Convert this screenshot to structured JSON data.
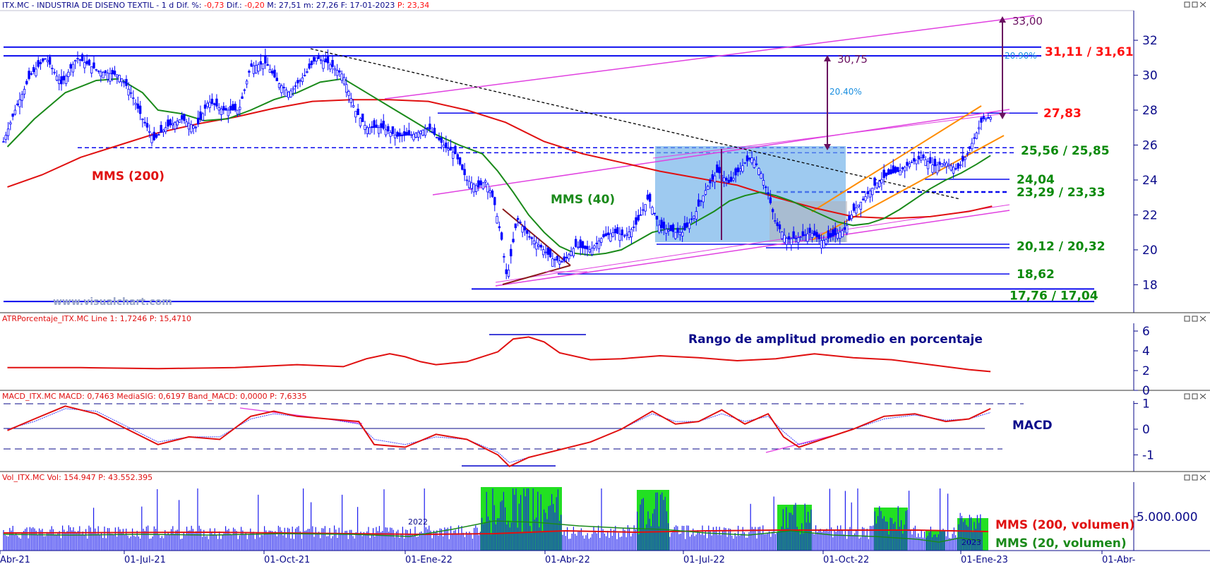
{
  "chart_data": [
    {
      "type": "candlestick",
      "header": {
        "title": "ITX.MC - INDUSTRIA DE DISENO TEXTIL -  1 d  Dif. %: ",
        "dif_pct": "-0,73",
        "dif_label": " Dif.: ",
        "dif": "-0,20",
        "rest": " M: 27,51  m: 27,26  F: 17-01-2023  ",
        "p_label": "P: 23,34"
      },
      "watermark": "www.visualchart.com",
      "y_ticks": [
        "32",
        "30",
        "28",
        "26",
        "24",
        "22",
        "20",
        "18"
      ],
      "ylim": [
        16.4,
        33.7
      ],
      "x_labels": [
        "Abr-21",
        "01-Jul-21",
        "01-Oct-21",
        "01-Ene-22",
        "01-Abr-22",
        "01-Jul-22",
        "01-Oct-22",
        "01-Ene-23",
        "01-Abr-"
      ],
      "x_label_top": [
        "2022",
        "2023"
      ],
      "price_path": [
        [
          0,
          26.2
        ],
        [
          15,
          28
        ],
        [
          35,
          30
        ],
        [
          55,
          31
        ],
        [
          75,
          29.5
        ],
        [
          95,
          31
        ],
        [
          110,
          30.6
        ],
        [
          125,
          30.2
        ],
        [
          150,
          30
        ],
        [
          165,
          29
        ],
        [
          180,
          27.5
        ],
        [
          195,
          26.3
        ],
        [
          210,
          27
        ],
        [
          230,
          27.5
        ],
        [
          250,
          27
        ],
        [
          265,
          28.5
        ],
        [
          285,
          28
        ],
        [
          305,
          28
        ],
        [
          320,
          30.5
        ],
        [
          340,
          30.7
        ],
        [
          355,
          29.6
        ],
        [
          370,
          29
        ],
        [
          390,
          30
        ],
        [
          405,
          31
        ],
        [
          420,
          30.7
        ],
        [
          440,
          30
        ],
        [
          455,
          28
        ],
        [
          470,
          27
        ],
        [
          490,
          27
        ],
        [
          510,
          26.5
        ],
        [
          530,
          26.6
        ],
        [
          550,
          27
        ],
        [
          570,
          26
        ],
        [
          585,
          25.5
        ],
        [
          600,
          24
        ],
        [
          615,
          23.6
        ],
        [
          625,
          24
        ],
        [
          635,
          22.8
        ],
        [
          645,
          20.6
        ],
        [
          652,
          18.3
        ],
        [
          665,
          21.8
        ],
        [
          680,
          20.8
        ],
        [
          695,
          20.2
        ],
        [
          710,
          19.5
        ],
        [
          725,
          19.3
        ],
        [
          740,
          20.2
        ],
        [
          760,
          20
        ],
        [
          775,
          20.7
        ],
        [
          790,
          21
        ],
        [
          805,
          20.8
        ],
        [
          820,
          21.5
        ],
        [
          835,
          23
        ],
        [
          850,
          21.3
        ],
        [
          870,
          21
        ],
        [
          880,
          21
        ],
        [
          895,
          22
        ],
        [
          910,
          23.5
        ],
        [
          925,
          24.5
        ],
        [
          940,
          23.8
        ],
        [
          960,
          25
        ],
        [
          970,
          25.3
        ],
        [
          980,
          24.5
        ],
        [
          990,
          23.2
        ],
        [
          1000,
          21.5
        ],
        [
          1015,
          20.6
        ],
        [
          1030,
          20.7
        ],
        [
          1045,
          21
        ],
        [
          1060,
          20.5
        ],
        [
          1075,
          20.8
        ],
        [
          1090,
          21.2
        ],
        [
          1100,
          22.2
        ],
        [
          1115,
          23
        ],
        [
          1130,
          23.8
        ],
        [
          1145,
          24.3
        ],
        [
          1160,
          24.5
        ],
        [
          1175,
          25
        ],
        [
          1190,
          25.3
        ],
        [
          1205,
          24.8
        ],
        [
          1220,
          25
        ],
        [
          1235,
          24.6
        ],
        [
          1248,
          25.5
        ],
        [
          1258,
          26.5
        ],
        [
          1268,
          27.5
        ],
        [
          1280,
          27.6
        ]
      ],
      "mms200_path": [
        [
          5,
          23.6
        ],
        [
          50,
          24.3
        ],
        [
          100,
          25.3
        ],
        [
          150,
          26
        ],
        [
          200,
          26.7
        ],
        [
          250,
          27.2
        ],
        [
          300,
          27.6
        ],
        [
          350,
          28.1
        ],
        [
          400,
          28.5
        ],
        [
          450,
          28.6
        ],
        [
          500,
          28.6
        ],
        [
          550,
          28.5
        ],
        [
          600,
          28
        ],
        [
          650,
          27.3
        ],
        [
          700,
          26.2
        ],
        [
          750,
          25.5
        ],
        [
          800,
          25
        ],
        [
          850,
          24.5
        ],
        [
          900,
          24.1
        ],
        [
          950,
          23.7
        ],
        [
          1000,
          23
        ],
        [
          1050,
          22.4
        ],
        [
          1100,
          21.9
        ],
        [
          1150,
          21.8
        ],
        [
          1200,
          21.9
        ],
        [
          1250,
          22.2
        ],
        [
          1280,
          22.5
        ]
      ],
      "mms40_path": [
        [
          5,
          25.9
        ],
        [
          40,
          27.5
        ],
        [
          80,
          29
        ],
        [
          120,
          29.7
        ],
        [
          150,
          29.8
        ],
        [
          180,
          29
        ],
        [
          200,
          28
        ],
        [
          230,
          27.8
        ],
        [
          260,
          27.4
        ],
        [
          290,
          27.5
        ],
        [
          320,
          28
        ],
        [
          350,
          28.6
        ],
        [
          380,
          29
        ],
        [
          410,
          29.6
        ],
        [
          440,
          29.8
        ],
        [
          470,
          29
        ],
        [
          500,
          28.2
        ],
        [
          530,
          27.4
        ],
        [
          560,
          26.6
        ],
        [
          590,
          26
        ],
        [
          620,
          25.5
        ],
        [
          640,
          24.5
        ],
        [
          660,
          23.3
        ],
        [
          680,
          22
        ],
        [
          700,
          21
        ],
        [
          720,
          20.2
        ],
        [
          740,
          19.8
        ],
        [
          760,
          19.7
        ],
        [
          780,
          19.8
        ],
        [
          800,
          20
        ],
        [
          820,
          20.5
        ],
        [
          840,
          21
        ],
        [
          860,
          21.2
        ],
        [
          880,
          21.2
        ],
        [
          900,
          21.7
        ],
        [
          920,
          22.2
        ],
        [
          940,
          22.8
        ],
        [
          960,
          23.1
        ],
        [
          980,
          23.3
        ],
        [
          1000,
          23.1
        ],
        [
          1020,
          22.8
        ],
        [
          1040,
          22.4
        ],
        [
          1060,
          22
        ],
        [
          1080,
          21.6
        ],
        [
          1100,
          21.4
        ],
        [
          1120,
          21.5
        ],
        [
          1140,
          21.8
        ],
        [
          1160,
          22.3
        ],
        [
          1180,
          22.9
        ],
        [
          1200,
          23.5
        ],
        [
          1220,
          24
        ],
        [
          1240,
          24.4
        ],
        [
          1260,
          24.9
        ],
        [
          1278,
          25.4
        ]
      ],
      "mms40_label": "MMS (40)",
      "mms200_label": "MMS (200)",
      "levels": [
        {
          "label": "31,11 / 31,61",
          "values": [
            31.11,
            31.61
          ],
          "color": "#ff1010"
        },
        {
          "label": "27,83",
          "values": [
            27.83
          ],
          "color": "#ff1010"
        },
        {
          "label": "25,56 / 25,85",
          "values": [
            25.56,
            25.85
          ],
          "color": "#0a8a0a"
        },
        {
          "label": "24,04",
          "values": [
            24.04
          ],
          "color": "#0a8a0a"
        },
        {
          "label": "23,29 / 23,33",
          "values": [
            23.29,
            23.33
          ],
          "color": "#0a8a0a"
        },
        {
          "label": "20,12 / 20,32",
          "values": [
            20.12,
            20.32
          ],
          "color": "#0a8a0a"
        },
        {
          "label": "18,62",
          "values": [
            18.62
          ],
          "color": "#0a8a0a"
        },
        {
          "label": "17,76 / 17,04",
          "values": [
            17.76,
            17.04
          ],
          "color": "#0a8a0a"
        }
      ],
      "targets": [
        {
          "label": "30,75",
          "value": 30.75,
          "pct": "20.40%"
        },
        {
          "label": "33,00",
          "value": 33.0,
          "pct": "20.90%"
        }
      ],
      "colors": {
        "price": "#0000ff",
        "mms200": "#e01010",
        "mms40": "#1a8a1a",
        "channel": "#e040e0",
        "trend": "#ff8c00",
        "box": "#6aaee8"
      }
    },
    {
      "type": "line",
      "header": "ATRPorcentaje_ITX.MC  Line 1: 1,7246  P: 15,4710",
      "annotation": "Rango de amplitud promedio en porcentaje",
      "y_ticks": [
        "6",
        "4",
        "2",
        "0"
      ],
      "ylim": [
        0,
        6.5
      ],
      "path": [
        [
          5,
          2.3
        ],
        [
          100,
          2.3
        ],
        [
          200,
          2.2
        ],
        [
          300,
          2.3
        ],
        [
          380,
          2.6
        ],
        [
          440,
          2.4
        ],
        [
          470,
          3.2
        ],
        [
          500,
          3.7
        ],
        [
          520,
          3.4
        ],
        [
          540,
          2.9
        ],
        [
          560,
          2.6
        ],
        [
          600,
          2.9
        ],
        [
          640,
          3.9
        ],
        [
          660,
          5.2
        ],
        [
          680,
          5.4
        ],
        [
          700,
          4.9
        ],
        [
          720,
          3.8
        ],
        [
          760,
          3.1
        ],
        [
          800,
          3.2
        ],
        [
          850,
          3.5
        ],
        [
          900,
          3.3
        ],
        [
          950,
          3.0
        ],
        [
          1000,
          3.2
        ],
        [
          1050,
          3.7
        ],
        [
          1100,
          3.3
        ],
        [
          1150,
          3.1
        ],
        [
          1200,
          2.6
        ],
        [
          1250,
          2.1
        ],
        [
          1278,
          1.9
        ]
      ]
    },
    {
      "type": "line",
      "header": "MACD_ITX.MC  MACD: 0,7463  MediaSIG: 0,6197  Band_MACD: 0,0000  P: 7,6335",
      "annotation": "MACD",
      "y_ticks": [
        "1",
        "0",
        "-1"
      ],
      "ylim": [
        -1.65,
        1.1
      ],
      "macd_path": [
        [
          5,
          -0.05
        ],
        [
          40,
          0.4
        ],
        [
          80,
          0.9
        ],
        [
          120,
          0.6
        ],
        [
          160,
          0
        ],
        [
          200,
          -0.6
        ],
        [
          240,
          -0.3
        ],
        [
          280,
          -0.4
        ],
        [
          320,
          0.5
        ],
        [
          350,
          0.7
        ],
        [
          380,
          0.5
        ],
        [
          420,
          0.4
        ],
        [
          460,
          0.3
        ],
        [
          480,
          -0.6
        ],
        [
          520,
          -0.7
        ],
        [
          560,
          -0.2
        ],
        [
          600,
          -0.4
        ],
        [
          640,
          -1.0
        ],
        [
          655,
          -1.45
        ],
        [
          680,
          -1.1
        ],
        [
          720,
          -0.8
        ],
        [
          760,
          -0.5
        ],
        [
          800,
          0
        ],
        [
          840,
          0.7
        ],
        [
          870,
          0.2
        ],
        [
          900,
          0.3
        ],
        [
          930,
          0.75
        ],
        [
          960,
          0.2
        ],
        [
          990,
          0.6
        ],
        [
          1010,
          -0.3
        ],
        [
          1030,
          -0.7
        ],
        [
          1060,
          -0.4
        ],
        [
          1100,
          0
        ],
        [
          1140,
          0.5
        ],
        [
          1180,
          0.6
        ],
        [
          1220,
          0.3
        ],
        [
          1250,
          0.4
        ],
        [
          1278,
          0.8
        ]
      ],
      "sig_path": [
        [
          5,
          0
        ],
        [
          40,
          0.3
        ],
        [
          80,
          0.8
        ],
        [
          120,
          0.7
        ],
        [
          160,
          0.1
        ],
        [
          200,
          -0.5
        ],
        [
          240,
          -0.3
        ],
        [
          280,
          -0.3
        ],
        [
          320,
          0.4
        ],
        [
          350,
          0.6
        ],
        [
          380,
          0.5
        ],
        [
          420,
          0.4
        ],
        [
          460,
          0.2
        ],
        [
          480,
          -0.4
        ],
        [
          520,
          -0.6
        ],
        [
          560,
          -0.3
        ],
        [
          600,
          -0.4
        ],
        [
          640,
          -0.9
        ],
        [
          655,
          -1.3
        ],
        [
          680,
          -1.1
        ],
        [
          720,
          -0.8
        ],
        [
          760,
          -0.5
        ],
        [
          800,
          0
        ],
        [
          840,
          0.6
        ],
        [
          870,
          0.3
        ],
        [
          900,
          0.3
        ],
        [
          930,
          0.6
        ],
        [
          960,
          0.3
        ],
        [
          990,
          0.5
        ],
        [
          1010,
          -0.1
        ],
        [
          1030,
          -0.6
        ],
        [
          1060,
          -0.4
        ],
        [
          1100,
          0
        ],
        [
          1140,
          0.4
        ],
        [
          1180,
          0.55
        ],
        [
          1220,
          0.35
        ],
        [
          1250,
          0.4
        ],
        [
          1278,
          0.65
        ]
      ]
    },
    {
      "type": "bar",
      "header": "Vol_ITX.MC  Vol: 154.947  P: 43.552.395",
      "y_ticks": [
        "5.000.000"
      ],
      "labels": {
        "mms200": "MMS (200, volumen)",
        "mms20": "MMS (20, volumen)"
      }
    }
  ]
}
